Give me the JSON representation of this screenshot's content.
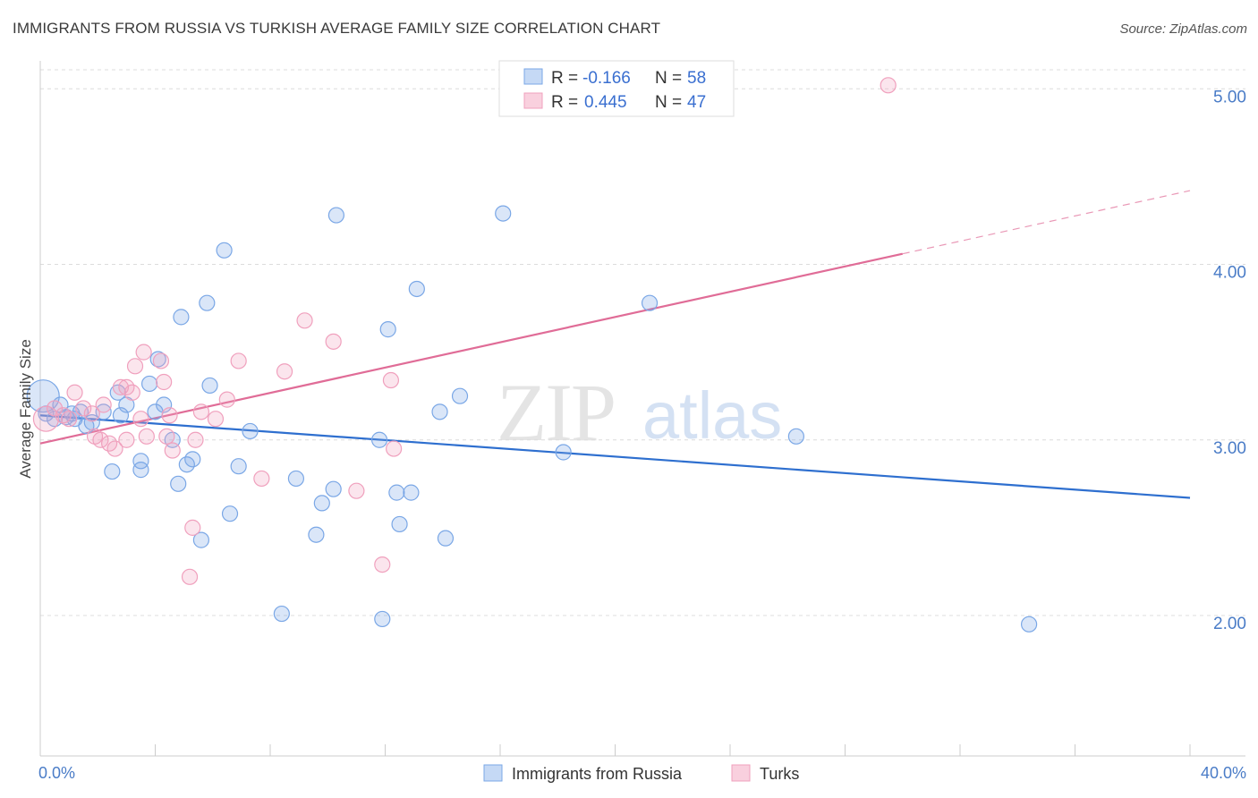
{
  "title": "IMMIGRANTS FROM RUSSIA VS TURKISH AVERAGE FAMILY SIZE CORRELATION CHART",
  "source": "Source: ZipAtlas.com",
  "watermark": "ZIPatlas",
  "chart_data": {
    "type": "scatter",
    "ylabel": "Average Family Size",
    "xlim": [
      0,
      40
    ],
    "ylim": [
      1.2,
      5.2
    ],
    "x_tick_labels": [
      "0.0%",
      "40.0%"
    ],
    "y_ticks": [
      2.0,
      3.0,
      4.0,
      5.0
    ],
    "y_tick_labels": [
      "2.00",
      "3.00",
      "4.00",
      "5.00"
    ],
    "legend": [
      {
        "r_label": "R =",
        "r_value": "-0.166",
        "n_label": "N =",
        "n_value": "58"
      },
      {
        "r_label": "R =",
        "r_value": "0.445",
        "n_label": "N =",
        "n_value": "47"
      }
    ],
    "series": [
      {
        "name": "Immigrants from Russia",
        "color": "#7aa7e6",
        "line_color": "#2e6fcf",
        "trend": {
          "x0": 0,
          "y0": 3.14,
          "x1": 40,
          "y1": 2.67,
          "solid_to": 40
        },
        "points": [
          [
            0.1,
            3.25
          ],
          [
            0.2,
            3.15
          ],
          [
            0.5,
            3.12
          ],
          [
            0.7,
            3.2
          ],
          [
            0.9,
            3.13
          ],
          [
            1.1,
            3.15
          ],
          [
            1.2,
            3.12
          ],
          [
            1.4,
            3.16
          ],
          [
            1.6,
            3.08
          ],
          [
            1.8,
            3.1
          ],
          [
            2.2,
            3.16
          ],
          [
            2.5,
            2.82
          ],
          [
            2.7,
            3.27
          ],
          [
            2.8,
            3.14
          ],
          [
            3.0,
            3.2
          ],
          [
            3.5,
            2.88
          ],
          [
            3.5,
            2.83
          ],
          [
            3.8,
            3.32
          ],
          [
            4.0,
            3.16
          ],
          [
            4.1,
            3.46
          ],
          [
            4.3,
            3.2
          ],
          [
            4.6,
            3.0
          ],
          [
            4.8,
            2.75
          ],
          [
            4.9,
            3.7
          ],
          [
            5.1,
            2.86
          ],
          [
            5.3,
            2.89
          ],
          [
            5.6,
            2.43
          ],
          [
            5.8,
            3.78
          ],
          [
            5.9,
            3.31
          ],
          [
            6.4,
            4.08
          ],
          [
            6.6,
            2.58
          ],
          [
            6.9,
            2.85
          ],
          [
            7.3,
            3.05
          ],
          [
            8.4,
            2.01
          ],
          [
            8.9,
            2.78
          ],
          [
            9.6,
            2.46
          ],
          [
            9.8,
            2.64
          ],
          [
            10.2,
            2.72
          ],
          [
            10.3,
            4.28
          ],
          [
            11.8,
            3.0
          ],
          [
            11.9,
            1.98
          ],
          [
            12.1,
            3.63
          ],
          [
            12.4,
            2.7
          ],
          [
            12.5,
            2.52
          ],
          [
            12.9,
            2.7
          ],
          [
            13.1,
            3.86
          ],
          [
            13.9,
            3.16
          ],
          [
            14.1,
            2.44
          ],
          [
            14.6,
            3.25
          ],
          [
            16.1,
            4.29
          ],
          [
            18.2,
            2.93
          ],
          [
            21.2,
            3.78
          ],
          [
            26.3,
            3.02
          ],
          [
            34.4,
            1.95
          ]
        ]
      },
      {
        "name": "Turks",
        "color": "#f0a0bd",
        "line_color": "#e06c97",
        "trend": {
          "x0": 0,
          "y0": 2.98,
          "x1": 40,
          "y1": 4.42,
          "solid_to": 30
        },
        "points": [
          [
            0.2,
            3.12
          ],
          [
            0.5,
            3.18
          ],
          [
            0.8,
            3.14
          ],
          [
            1.0,
            3.12
          ],
          [
            1.2,
            3.27
          ],
          [
            1.5,
            3.18
          ],
          [
            1.8,
            3.15
          ],
          [
            1.9,
            3.02
          ],
          [
            2.1,
            3.0
          ],
          [
            2.2,
            3.2
          ],
          [
            2.4,
            2.98
          ],
          [
            2.6,
            2.95
          ],
          [
            2.8,
            3.3
          ],
          [
            3.0,
            3.3
          ],
          [
            3.0,
            3.0
          ],
          [
            3.2,
            3.27
          ],
          [
            3.3,
            3.42
          ],
          [
            3.5,
            3.12
          ],
          [
            3.6,
            3.5
          ],
          [
            3.7,
            3.02
          ],
          [
            4.2,
            3.45
          ],
          [
            4.3,
            3.33
          ],
          [
            4.4,
            3.02
          ],
          [
            4.5,
            3.14
          ],
          [
            4.6,
            2.94
          ],
          [
            5.2,
            2.22
          ],
          [
            5.3,
            2.5
          ],
          [
            5.4,
            3.0
          ],
          [
            5.6,
            3.16
          ],
          [
            6.1,
            3.12
          ],
          [
            6.5,
            3.23
          ],
          [
            6.9,
            3.45
          ],
          [
            7.7,
            2.78
          ],
          [
            8.5,
            3.39
          ],
          [
            9.2,
            3.68
          ],
          [
            10.2,
            3.56
          ],
          [
            11.0,
            2.71
          ],
          [
            11.9,
            2.29
          ],
          [
            12.2,
            3.34
          ],
          [
            12.3,
            2.95
          ],
          [
            29.5,
            5.02
          ]
        ]
      }
    ]
  }
}
